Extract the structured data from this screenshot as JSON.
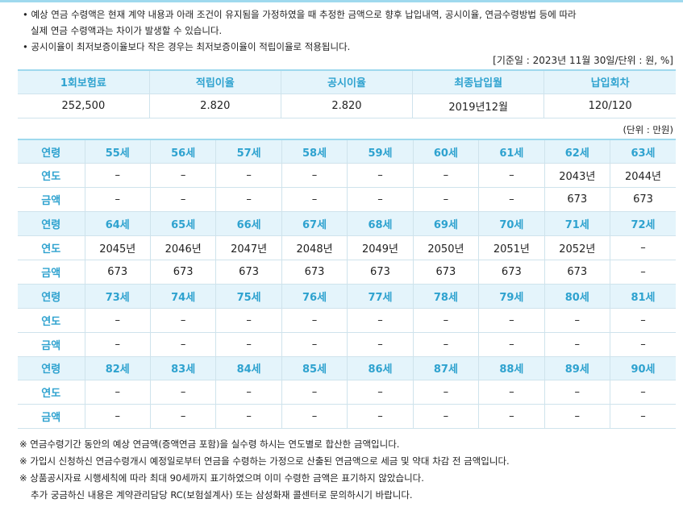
{
  "notes": [
    [
      "• 예상 연금 수령액은 현재 계약 내용과 아래 조건이 유지됨을 가정하였을 때 추정한 금액으로 향후 납입내역, 공시이율, 연금수령방법 등에 따라",
      "실제 연금 수령액과는 차이가 발생할 수 있습니다."
    ],
    [
      "• 공시이율이 최저보증이율보다 작은 경우는 최저보증이율이 적립이율로 적용됩니다."
    ]
  ],
  "basis": "[기준일 : 2023년  11월  30일/단위 : 원, %]",
  "contract_table": {
    "headers": [
      "1회보험료",
      "적립이율",
      "공시이율",
      "최종납입월",
      "납입회차"
    ],
    "row": [
      "252,500",
      "2.820",
      "2.820",
      "2019년12월",
      "120/120"
    ]
  },
  "unit": "(단위 : 만원)",
  "pension_table": {
    "row_labels": [
      "연령",
      "연도",
      "금액"
    ],
    "blocks": [
      {
        "ages": [
          "55세",
          "56세",
          "57세",
          "58세",
          "59세",
          "60세",
          "61세",
          "62세",
          "63세"
        ],
        "years": [
          "–",
          "–",
          "–",
          "–",
          "–",
          "–",
          "–",
          "2043년",
          "2044년"
        ],
        "amounts": [
          "–",
          "–",
          "–",
          "–",
          "–",
          "–",
          "–",
          "673",
          "673"
        ]
      },
      {
        "ages": [
          "64세",
          "65세",
          "66세",
          "67세",
          "68세",
          "69세",
          "70세",
          "71세",
          "72세"
        ],
        "years": [
          "2045년",
          "2046년",
          "2047년",
          "2048년",
          "2049년",
          "2050년",
          "2051년",
          "2052년",
          "–"
        ],
        "amounts": [
          "673",
          "673",
          "673",
          "673",
          "673",
          "673",
          "673",
          "673",
          "–"
        ]
      },
      {
        "ages": [
          "73세",
          "74세",
          "75세",
          "76세",
          "77세",
          "78세",
          "79세",
          "80세",
          "81세"
        ],
        "years": [
          "–",
          "–",
          "–",
          "–",
          "–",
          "–",
          "–",
          "–",
          "–"
        ],
        "amounts": [
          "–",
          "–",
          "–",
          "–",
          "–",
          "–",
          "–",
          "–",
          "–"
        ]
      },
      {
        "ages": [
          "82세",
          "83세",
          "84세",
          "85세",
          "86세",
          "87세",
          "88세",
          "89세",
          "90세"
        ],
        "years": [
          "–",
          "–",
          "–",
          "–",
          "–",
          "–",
          "–",
          "–",
          "–"
        ],
        "amounts": [
          "–",
          "–",
          "–",
          "–",
          "–",
          "–",
          "–",
          "–",
          "–"
        ]
      }
    ]
  },
  "footnotes": [
    "※ 연금수령기간 동안의 예상 연금액(증액연금 포함)을 실수령 하시는 연도별로 합산한 금액입니다.",
    "※ 가입시 신청하신 연금수령개시 예정일로부터 연금을 수령하는 가정으로 산출된 연금액으로 세금 및 약대 차감 전 금액입니다.",
    "※ 상품공시자료 시행세칙에 따라 최대 90세까지 표기하였으며 이미 수령한 금액은 표기하지 않았습니다.",
    "추가 궁금하신 내용은 계약관리담당 RC(보험설계사) 또는 삼성화재 콜센터로 문의하시기 바랍니다."
  ]
}
